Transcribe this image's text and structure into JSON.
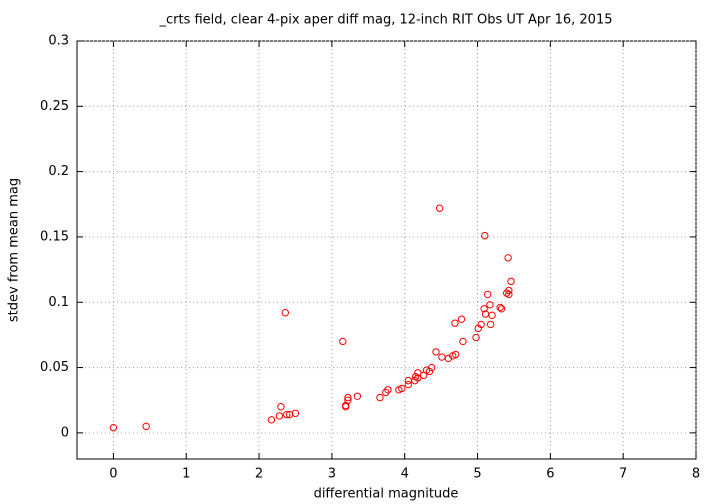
{
  "chart_data": {
    "type": "scatter",
    "title": "_crts field, clear 4-pix aper diff mag,  12-inch RIT Obs UT Apr 16, 2015",
    "x_label": "differential magnitude",
    "y_label": "stdev from mean mag",
    "xlim": [
      -0.5,
      8
    ],
    "xticks": [
      0,
      1,
      2,
      3,
      4,
      5,
      6,
      7,
      8
    ],
    "ylim": [
      -0.02,
      0.3
    ],
    "yticks": [
      0,
      0.05,
      0.1,
      0.15,
      0.2,
      0.25,
      0.3
    ],
    "grid": true,
    "series": [
      {
        "color": "#ff0000",
        "x": [
          0,
          0.45,
          2.17,
          2.36,
          2.28,
          2.3,
          2.38,
          2.42,
          2.5,
          3.15,
          3.19,
          3.19,
          3.22,
          3.22,
          3.35,
          3.66,
          3.74,
          3.77,
          3.92,
          3.96,
          4.05,
          4.05,
          4.14,
          4.15,
          4.18,
          4.18,
          4.26,
          4.3,
          4.34,
          4.37,
          4.43,
          4.48,
          4.51,
          4.6,
          4.66,
          4.7,
          4.69,
          4.78,
          4.8,
          4.98,
          5.01,
          5.05,
          5.09,
          5.1,
          5.11,
          5.14,
          5.17,
          5.18,
          5.2,
          5.31,
          5.33,
          5.4,
          5.42,
          5.43,
          5.43,
          5.46
        ],
        "values": [
          0.004,
          0.005,
          0.01,
          0.092,
          0.013,
          0.02,
          0.014,
          0.014,
          0.015,
          0.07,
          0.02,
          0.021,
          0.025,
          0.027,
          0.028,
          0.027,
          0.031,
          0.033,
          0.033,
          0.034,
          0.04,
          0.037,
          0.04,
          0.043,
          0.046,
          0.042,
          0.044,
          0.048,
          0.047,
          0.05,
          0.062,
          0.172,
          0.058,
          0.057,
          0.059,
          0.06,
          0.084,
          0.087,
          0.07,
          0.073,
          0.08,
          0.083,
          0.095,
          0.151,
          0.091,
          0.106,
          0.098,
          0.083,
          0.09,
          0.096,
          0.095,
          0.107,
          0.134,
          0.109,
          0.106,
          0.116
        ]
      }
    ]
  }
}
